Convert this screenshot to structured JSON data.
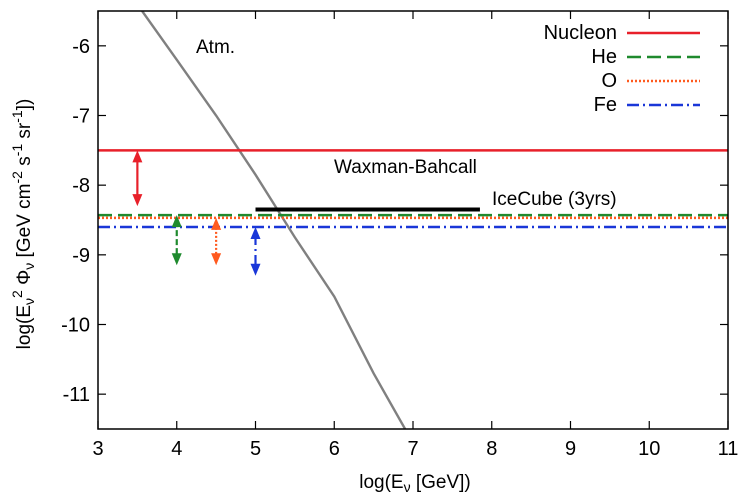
{
  "chart_data": {
    "type": "line",
    "title": "",
    "xlabel": "log(E_ν [GeV])",
    "ylabel": "log(E_ν^2 Φ_ν [GeV cm^-2 s^-1 sr^-1])",
    "xlim": [
      3,
      11
    ],
    "ylim": [
      -11.5,
      -5.5
    ],
    "xticks": [
      3,
      4,
      5,
      6,
      7,
      8,
      9,
      10,
      11
    ],
    "yticks": [
      -11,
      -10,
      -9,
      -8,
      -7,
      -6
    ],
    "xtick_labels": [
      "3",
      "4",
      "5",
      "6",
      "7",
      "8",
      "9",
      "10",
      "11"
    ],
    "ytick_labels": [
      "-11",
      "-10",
      "-9",
      "-8",
      "-7",
      "-6"
    ],
    "legend_position": "top-right",
    "series": [
      {
        "name": "Nucleon",
        "color": "#e8202a",
        "style": "solid",
        "x": [
          3,
          11
        ],
        "y": [
          -7.5,
          -7.5
        ]
      },
      {
        "name": "He",
        "color": "#1f8a2e",
        "style": "dashed",
        "x": [
          3,
          11
        ],
        "y": [
          -8.43,
          -8.43
        ]
      },
      {
        "name": "O",
        "color": "#ff5a1f",
        "style": "dotted",
        "x": [
          3,
          11
        ],
        "y": [
          -8.47,
          -8.47
        ]
      },
      {
        "name": "Fe",
        "color": "#1a37d8",
        "style": "dashdot",
        "x": [
          3,
          11
        ],
        "y": [
          -8.6,
          -8.6
        ]
      }
    ],
    "atmospheric": {
      "label": "Atm.",
      "color": "#808080",
      "x": [
        3.56,
        4.0,
        4.5,
        5.0,
        5.5,
        6.0,
        6.5,
        6.9
      ],
      "y": [
        -5.5,
        -6.2,
        -7.0,
        -7.85,
        -8.75,
        -9.6,
        -10.7,
        -11.5
      ]
    },
    "icecube": {
      "label": "IceCube (3yrs)",
      "color": "#000000",
      "x": [
        5.0,
        7.85
      ],
      "y": -8.35
    },
    "waxman_bahcall": {
      "label": "Waxman-Bahcall"
    },
    "range_arrows": [
      {
        "series": "Nucleon",
        "x": 3.5,
        "y_top": -7.5,
        "y_bottom": -8.3,
        "color": "#e8202a",
        "style": "solid"
      },
      {
        "series": "He",
        "x": 4.0,
        "y_top": -8.43,
        "y_bottom": -9.15,
        "color": "#1f8a2e",
        "style": "dashed"
      },
      {
        "series": "O",
        "x": 4.5,
        "y_top": -8.47,
        "y_bottom": -9.15,
        "color": "#ff5a1f",
        "style": "dotted"
      },
      {
        "series": "Fe",
        "x": 5.0,
        "y_top": -8.6,
        "y_bottom": -9.3,
        "color": "#1a37d8",
        "style": "dashdot"
      }
    ]
  }
}
